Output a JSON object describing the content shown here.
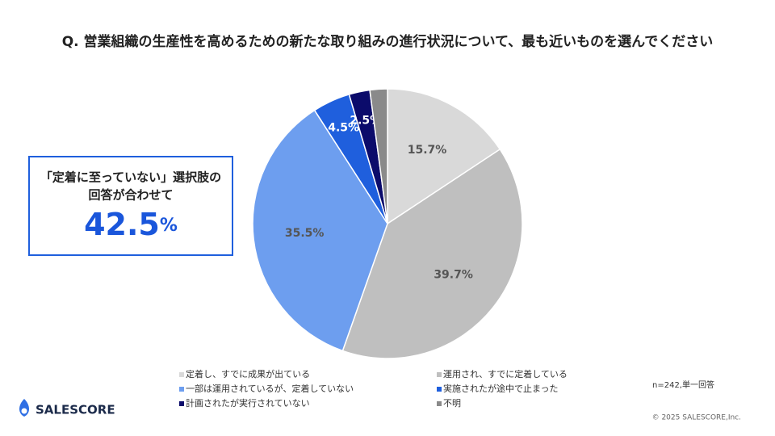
{
  "chart_data": {
    "type": "pie",
    "title": "Q. 営業組織の生産性を高めるための新たな取り組みの進行状況について、最も近いものを選んでください",
    "categories": [
      "定着し、すでに成果が出ている",
      "運用され、すでに定着している",
      "一部は運用されているが、定着していない",
      "実施されたが途中で止まった",
      "計画されたが実行されていない",
      "不明"
    ],
    "values": [
      15.7,
      39.7,
      35.5,
      4.5,
      2.5,
      2.1
    ],
    "value_labels": [
      "15.7%",
      "39.7%",
      "35.5%",
      "4.5%",
      "2.5%",
      null
    ],
    "colors": [
      "#d9d9d9",
      "#bfbfbf",
      "#6d9eef",
      "#1f5fdd",
      "#0b0b6b",
      "#8a8a8a"
    ],
    "legend": "bottom"
  },
  "callout": {
    "lines": [
      "「定着に至っていない」選択肢の",
      "回答が合わせて"
    ],
    "value": "42.5",
    "unit": "%"
  },
  "note": "n=242,単一回答",
  "logo": "SALESCORE",
  "copyright": "© 2025 SALESCORE,Inc."
}
